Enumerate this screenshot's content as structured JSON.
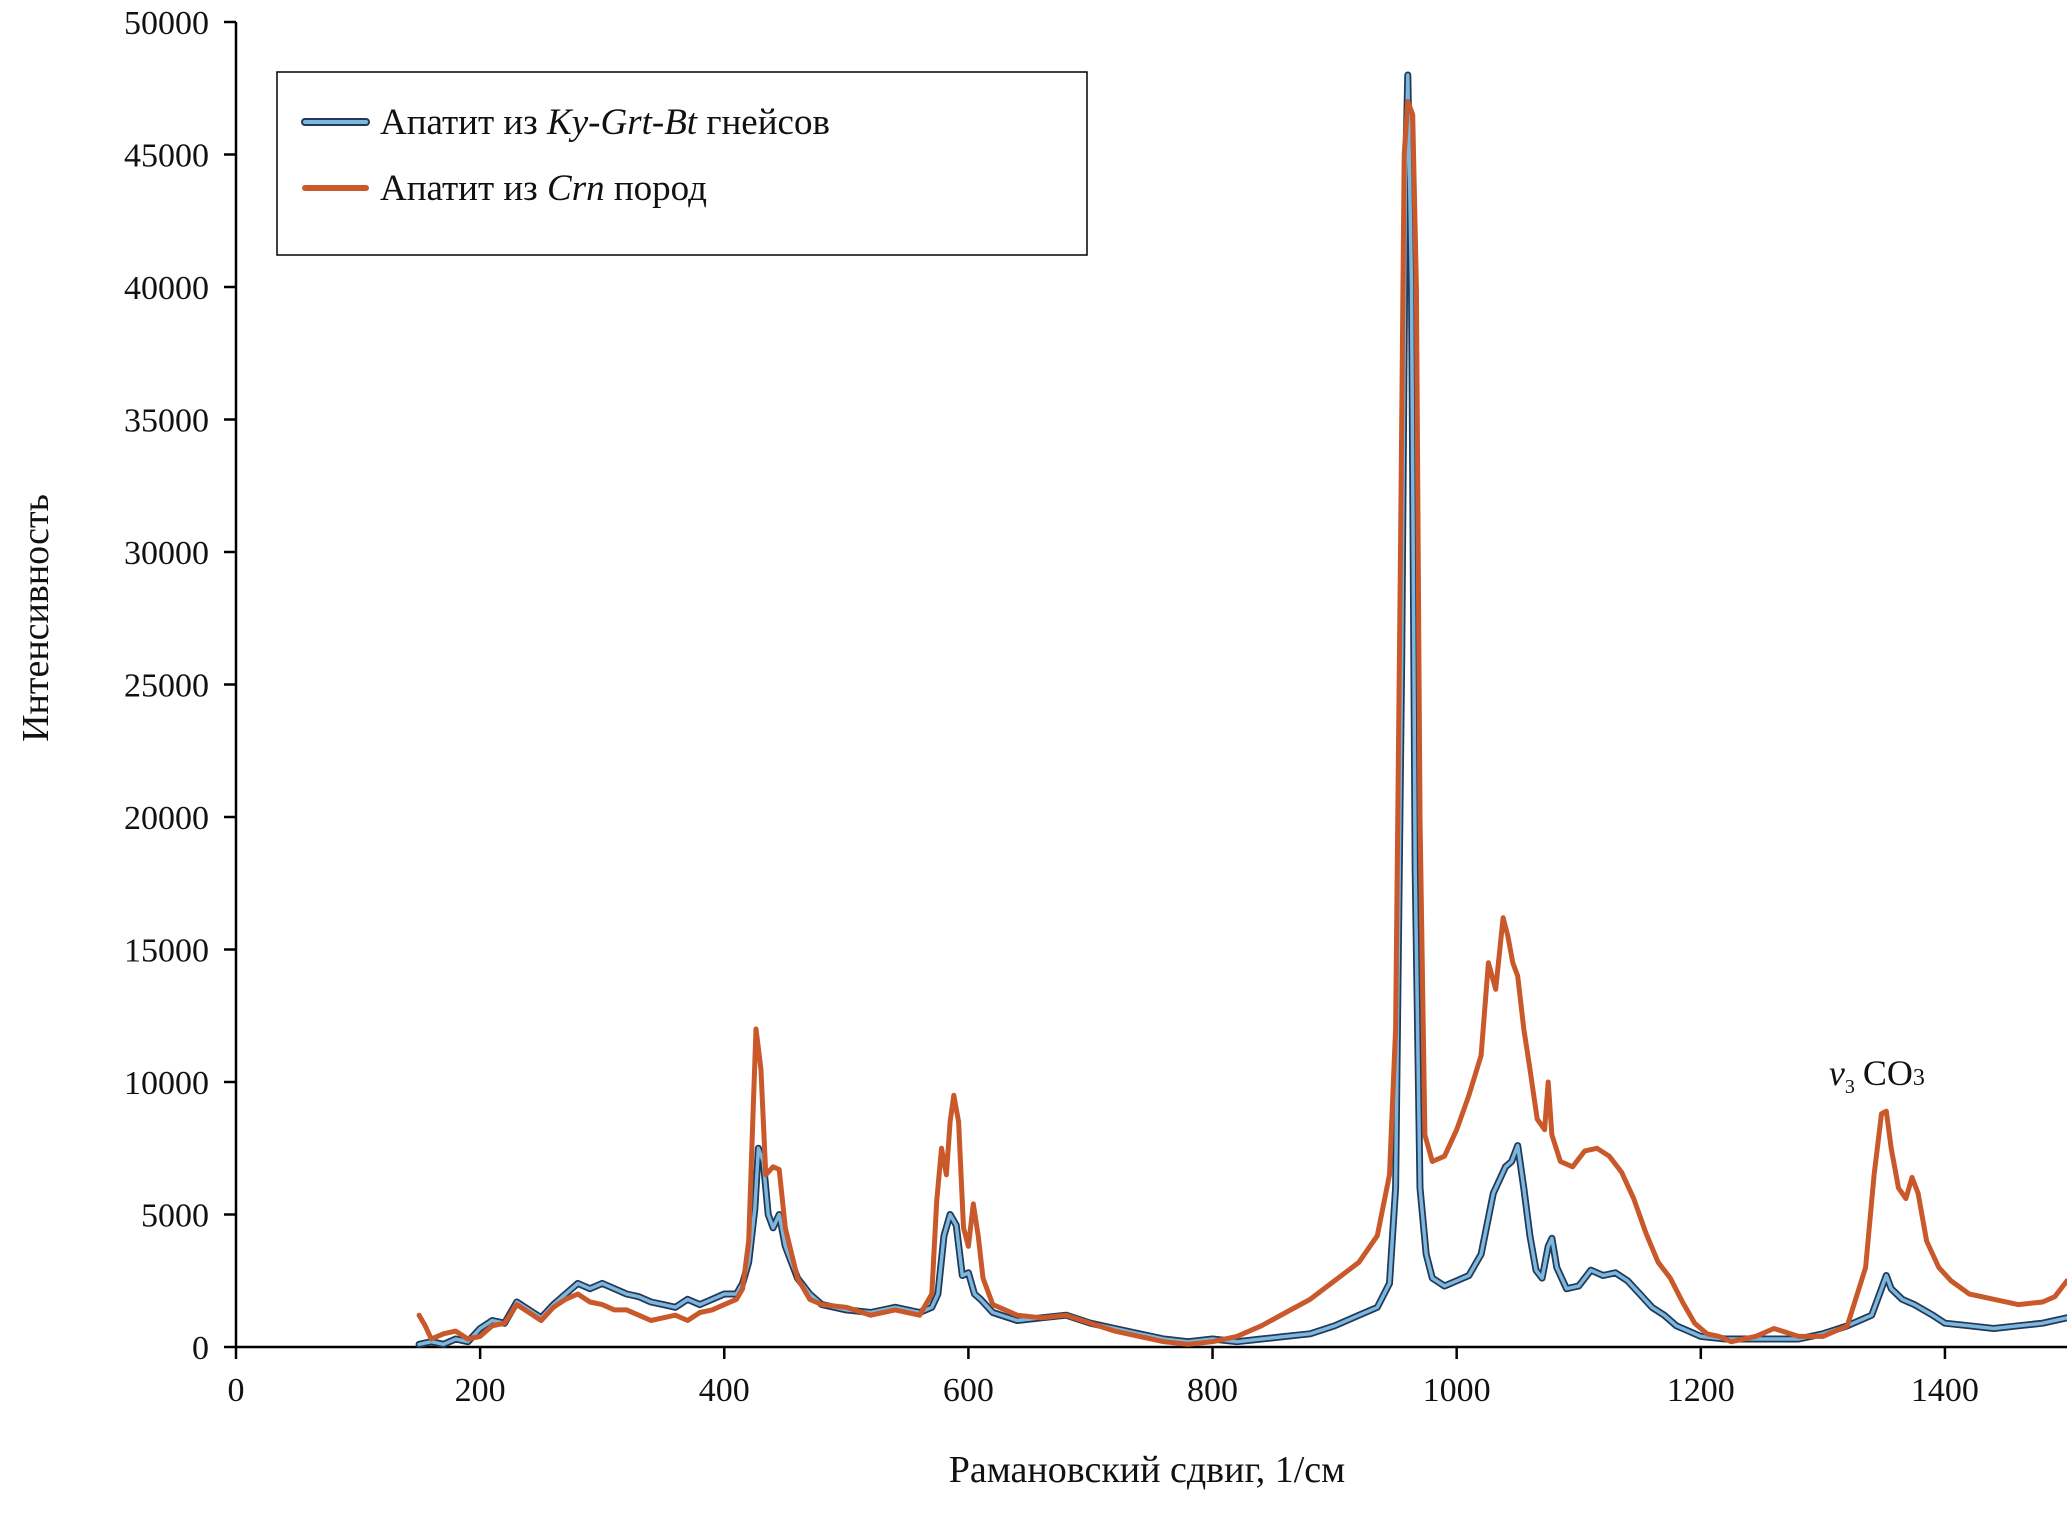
{
  "chart_data": {
    "type": "line",
    "xlabel": "Рамановский сдвиг, 1/см",
    "ylabel": "Интенсивность",
    "xlim": [
      0,
      1500
    ],
    "ylim": [
      0,
      50000
    ],
    "xticks": [
      0,
      200,
      400,
      600,
      800,
      1000,
      1200,
      1400
    ],
    "yticks": [
      0,
      5000,
      10000,
      15000,
      20000,
      25000,
      30000,
      35000,
      40000,
      45000,
      50000
    ],
    "legend_position": "top-left",
    "annotation": {
      "text": "v3 CO3",
      "v": "v",
      "sub_v": "3",
      "species": "CO",
      "sub_species": "3",
      "x": 1350,
      "y": 10500
    },
    "series": [
      {
        "name": "Апатит из Ky-Grt-Bt гнейсов",
        "legend_parts": [
          "Апатит из ",
          "Ky-Grt-Bt",
          " гнейсов"
        ],
        "color": "#7fb6dc",
        "outline_color": "#1f3a5a",
        "points": [
          [
            150,
            100
          ],
          [
            160,
            200
          ],
          [
            170,
            100
          ],
          [
            180,
            300
          ],
          [
            190,
            200
          ],
          [
            200,
            700
          ],
          [
            210,
            1000
          ],
          [
            220,
            900
          ],
          [
            230,
            1700
          ],
          [
            240,
            1400
          ],
          [
            250,
            1100
          ],
          [
            260,
            1600
          ],
          [
            270,
            2000
          ],
          [
            280,
            2400
          ],
          [
            290,
            2200
          ],
          [
            300,
            2400
          ],
          [
            310,
            2200
          ],
          [
            320,
            2000
          ],
          [
            330,
            1900
          ],
          [
            340,
            1700
          ],
          [
            350,
            1600
          ],
          [
            360,
            1500
          ],
          [
            370,
            1800
          ],
          [
            380,
            1600
          ],
          [
            390,
            1800
          ],
          [
            400,
            2000
          ],
          [
            410,
            2000
          ],
          [
            415,
            2400
          ],
          [
            420,
            3200
          ],
          [
            425,
            5200
          ],
          [
            428,
            7500
          ],
          [
            432,
            7000
          ],
          [
            436,
            5000
          ],
          [
            440,
            4500
          ],
          [
            445,
            5000
          ],
          [
            450,
            3800
          ],
          [
            460,
            2600
          ],
          [
            470,
            2000
          ],
          [
            480,
            1600
          ],
          [
            500,
            1400
          ],
          [
            520,
            1300
          ],
          [
            540,
            1500
          ],
          [
            560,
            1300
          ],
          [
            570,
            1500
          ],
          [
            575,
            2000
          ],
          [
            580,
            4200
          ],
          [
            585,
            5000
          ],
          [
            590,
            4600
          ],
          [
            595,
            2700
          ],
          [
            600,
            2800
          ],
          [
            605,
            2000
          ],
          [
            610,
            1800
          ],
          [
            620,
            1300
          ],
          [
            640,
            1000
          ],
          [
            660,
            1100
          ],
          [
            680,
            1200
          ],
          [
            700,
            900
          ],
          [
            720,
            700
          ],
          [
            740,
            500
          ],
          [
            760,
            300
          ],
          [
            780,
            200
          ],
          [
            800,
            300
          ],
          [
            820,
            200
          ],
          [
            840,
            300
          ],
          [
            860,
            400
          ],
          [
            880,
            500
          ],
          [
            900,
            800
          ],
          [
            920,
            1200
          ],
          [
            935,
            1500
          ],
          [
            945,
            2400
          ],
          [
            950,
            6000
          ],
          [
            955,
            26000
          ],
          [
            958,
            44000
          ],
          [
            960,
            48000
          ],
          [
            963,
            40000
          ],
          [
            966,
            18000
          ],
          [
            970,
            6000
          ],
          [
            975,
            3500
          ],
          [
            980,
            2600
          ],
          [
            990,
            2300
          ],
          [
            1000,
            2500
          ],
          [
            1010,
            2700
          ],
          [
            1020,
            3500
          ],
          [
            1030,
            5800
          ],
          [
            1040,
            6800
          ],
          [
            1045,
            7000
          ],
          [
            1050,
            7600
          ],
          [
            1055,
            6000
          ],
          [
            1060,
            4200
          ],
          [
            1065,
            2900
          ],
          [
            1070,
            2600
          ],
          [
            1075,
            3800
          ],
          [
            1078,
            4100
          ],
          [
            1082,
            3000
          ],
          [
            1090,
            2200
          ],
          [
            1100,
            2300
          ],
          [
            1110,
            2900
          ],
          [
            1120,
            2700
          ],
          [
            1130,
            2800
          ],
          [
            1140,
            2500
          ],
          [
            1150,
            2000
          ],
          [
            1160,
            1500
          ],
          [
            1170,
            1200
          ],
          [
            1180,
            800
          ],
          [
            1190,
            600
          ],
          [
            1200,
            400
          ],
          [
            1220,
            300
          ],
          [
            1240,
            300
          ],
          [
            1260,
            300
          ],
          [
            1280,
            300
          ],
          [
            1300,
            500
          ],
          [
            1320,
            800
          ],
          [
            1340,
            1200
          ],
          [
            1348,
            2200
          ],
          [
            1352,
            2700
          ],
          [
            1356,
            2200
          ],
          [
            1365,
            1800
          ],
          [
            1375,
            1600
          ],
          [
            1390,
            1200
          ],
          [
            1400,
            900
          ],
          [
            1420,
            800
          ],
          [
            1440,
            700
          ],
          [
            1460,
            800
          ],
          [
            1480,
            900
          ],
          [
            1500,
            1100
          ]
        ]
      },
      {
        "name": "Апатит из Crn пород",
        "legend_parts": [
          "Апатит из ",
          "Crn",
          " пород"
        ],
        "color": "#c9582a",
        "points": [
          [
            150,
            1200
          ],
          [
            155,
            800
          ],
          [
            160,
            300
          ],
          [
            170,
            500
          ],
          [
            180,
            600
          ],
          [
            190,
            300
          ],
          [
            200,
            400
          ],
          [
            210,
            800
          ],
          [
            220,
            900
          ],
          [
            230,
            1600
          ],
          [
            240,
            1300
          ],
          [
            250,
            1000
          ],
          [
            260,
            1500
          ],
          [
            270,
            1800
          ],
          [
            280,
            2000
          ],
          [
            290,
            1700
          ],
          [
            300,
            1600
          ],
          [
            310,
            1400
          ],
          [
            320,
            1400
          ],
          [
            330,
            1200
          ],
          [
            340,
            1000
          ],
          [
            350,
            1100
          ],
          [
            360,
            1200
          ],
          [
            370,
            1000
          ],
          [
            380,
            1300
          ],
          [
            390,
            1400
          ],
          [
            400,
            1600
          ],
          [
            410,
            1800
          ],
          [
            415,
            2200
          ],
          [
            420,
            4000
          ],
          [
            423,
            8000
          ],
          [
            426,
            12000
          ],
          [
            430,
            10500
          ],
          [
            434,
            6500
          ],
          [
            440,
            6800
          ],
          [
            445,
            6700
          ],
          [
            450,
            4500
          ],
          [
            460,
            2600
          ],
          [
            470,
            1800
          ],
          [
            480,
            1600
          ],
          [
            500,
            1500
          ],
          [
            520,
            1200
          ],
          [
            540,
            1400
          ],
          [
            560,
            1200
          ],
          [
            570,
            2000
          ],
          [
            574,
            5500
          ],
          [
            578,
            7500
          ],
          [
            582,
            6500
          ],
          [
            585,
            8500
          ],
          [
            588,
            9500
          ],
          [
            592,
            8500
          ],
          [
            596,
            4500
          ],
          [
            600,
            3800
          ],
          [
            604,
            5400
          ],
          [
            608,
            4200
          ],
          [
            612,
            2600
          ],
          [
            620,
            1600
          ],
          [
            640,
            1200
          ],
          [
            660,
            1100
          ],
          [
            680,
            1200
          ],
          [
            700,
            900
          ],
          [
            720,
            600
          ],
          [
            740,
            400
          ],
          [
            760,
            200
          ],
          [
            780,
            100
          ],
          [
            800,
            200
          ],
          [
            820,
            400
          ],
          [
            840,
            800
          ],
          [
            860,
            1300
          ],
          [
            880,
            1800
          ],
          [
            900,
            2500
          ],
          [
            920,
            3200
          ],
          [
            935,
            4200
          ],
          [
            945,
            6500
          ],
          [
            950,
            12000
          ],
          [
            954,
            30000
          ],
          [
            957,
            45000
          ],
          [
            960,
            47000
          ],
          [
            964,
            46500
          ],
          [
            967,
            40000
          ],
          [
            970,
            20000
          ],
          [
            974,
            8000
          ],
          [
            980,
            7000
          ],
          [
            990,
            7200
          ],
          [
            1000,
            8200
          ],
          [
            1010,
            9500
          ],
          [
            1020,
            11000
          ],
          [
            1026,
            14500
          ],
          [
            1032,
            13500
          ],
          [
            1038,
            16200
          ],
          [
            1042,
            15500
          ],
          [
            1046,
            14500
          ],
          [
            1050,
            14000
          ],
          [
            1055,
            12000
          ],
          [
            1060,
            10500
          ],
          [
            1066,
            8600
          ],
          [
            1072,
            8200
          ],
          [
            1075,
            10000
          ],
          [
            1078,
            8000
          ],
          [
            1085,
            7000
          ],
          [
            1095,
            6800
          ],
          [
            1105,
            7400
          ],
          [
            1115,
            7500
          ],
          [
            1125,
            7200
          ],
          [
            1135,
            6600
          ],
          [
            1145,
            5600
          ],
          [
            1155,
            4300
          ],
          [
            1165,
            3200
          ],
          [
            1175,
            2600
          ],
          [
            1185,
            1700
          ],
          [
            1195,
            900
          ],
          [
            1205,
            500
          ],
          [
            1215,
            400
          ],
          [
            1225,
            200
          ],
          [
            1235,
            300
          ],
          [
            1245,
            400
          ],
          [
            1260,
            700
          ],
          [
            1280,
            400
          ],
          [
            1300,
            400
          ],
          [
            1320,
            800
          ],
          [
            1335,
            3000
          ],
          [
            1342,
            6500
          ],
          [
            1348,
            8800
          ],
          [
            1352,
            8900
          ],
          [
            1356,
            7500
          ],
          [
            1362,
            6000
          ],
          [
            1368,
            5600
          ],
          [
            1373,
            6400
          ],
          [
            1378,
            5800
          ],
          [
            1385,
            4000
          ],
          [
            1395,
            3000
          ],
          [
            1405,
            2500
          ],
          [
            1420,
            2000
          ],
          [
            1440,
            1800
          ],
          [
            1460,
            1600
          ],
          [
            1480,
            1700
          ],
          [
            1490,
            1900
          ],
          [
            1500,
            2500
          ]
        ]
      }
    ]
  }
}
